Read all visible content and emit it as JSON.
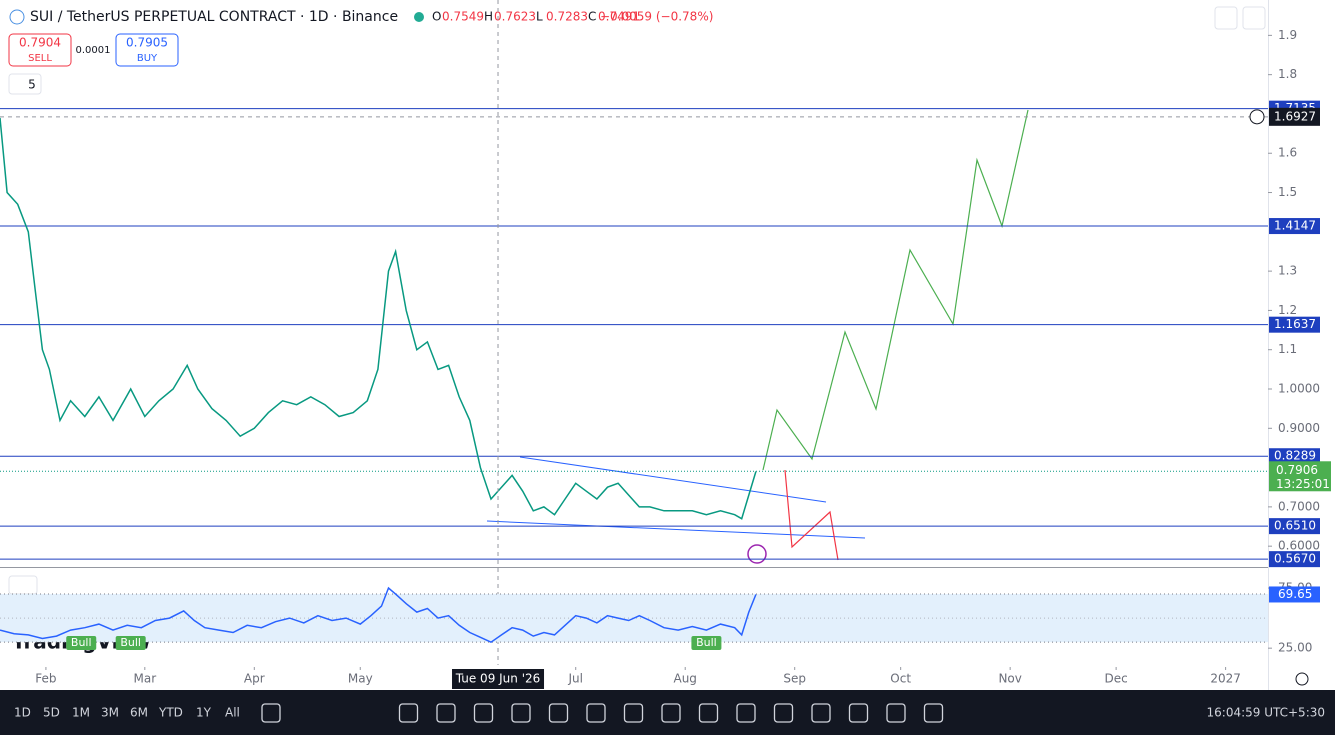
{
  "header": {
    "symbol": "SUI / TetherUS PERPETUAL CONTRACT · 1D · Binance",
    "ohlc": [
      {
        "key": "O",
        "value": "0.7549"
      },
      {
        "key": "H",
        "value": "0.7623"
      },
      {
        "key": "L",
        "value": "0.7283"
      },
      {
        "key": "C",
        "value": "0.7491"
      }
    ],
    "change": "−0.0059 (−0.78%)"
  },
  "trade": {
    "sell_price": "0.7904",
    "sell_label": "SELL",
    "spread": "0.0001",
    "buy_price": "0.7905",
    "buy_label": "BUY"
  },
  "indicators_count": "5",
  "logo": "TradingView",
  "chart_data": [
    {
      "type": "line",
      "series": [
        {
          "name": "SUIUSDT.P",
          "color": "#089981",
          "x": [
            18,
            20,
            23,
            26,
            28,
            30,
            32,
            35,
            38,
            42,
            46,
            50,
            55,
            59,
            63,
            67,
            71,
            74,
            78,
            82,
            86,
            90,
            94,
            98,
            102,
            106,
            110,
            114,
            118,
            122,
            125,
            128,
            130,
            133,
            136,
            139,
            142,
            145,
            148,
            151,
            154,
            157,
            160,
            163,
            166,
            169,
            172,
            175,
            178,
            181,
            184,
            187,
            190,
            193,
            196,
            199,
            202,
            206,
            210,
            214,
            218,
            222,
            226,
            228,
            230,
            232
          ],
          "values": [
            1.69,
            1.5,
            1.47,
            1.4,
            1.25,
            1.1,
            1.05,
            0.92,
            0.97,
            0.93,
            0.98,
            0.92,
            1.0,
            0.93,
            0.97,
            1.0,
            1.06,
            1.0,
            0.95,
            0.92,
            0.88,
            0.9,
            0.94,
            0.97,
            0.96,
            0.98,
            0.96,
            0.93,
            0.94,
            0.97,
            1.05,
            1.3,
            1.35,
            1.2,
            1.1,
            1.12,
            1.05,
            1.06,
            0.98,
            0.92,
            0.8,
            0.72,
            0.75,
            0.78,
            0.74,
            0.69,
            0.7,
            0.68,
            0.72,
            0.76,
            0.74,
            0.72,
            0.75,
            0.76,
            0.73,
            0.7,
            0.7,
            0.69,
            0.69,
            0.69,
            0.68,
            0.69,
            0.68,
            0.67,
            0.73,
            0.79
          ]
        }
      ],
      "xlim": [
        18,
        377
      ],
      "ylim": [
        0.547,
        1.99
      ],
      "xticks": [
        {
          "value": 31,
          "label": "Feb"
        },
        {
          "value": 59,
          "label": "Mar"
        },
        {
          "value": 90,
          "label": "Apr"
        },
        {
          "value": 120,
          "label": "May"
        },
        {
          "value": 181,
          "label": "Jul"
        },
        {
          "value": 212,
          "label": "Aug"
        },
        {
          "value": 243,
          "label": "Sep"
        },
        {
          "value": 273,
          "label": "Oct"
        },
        {
          "value": 304,
          "label": "Nov"
        },
        {
          "value": 334,
          "label": "Dec"
        },
        {
          "value": 365,
          "label": "2027"
        }
      ],
      "yticks": [
        1.9,
        1.8,
        1.6,
        1.5,
        1.3,
        1.2,
        1.1,
        {
          "value": 1.0,
          "label": "1.0000"
        },
        {
          "value": 0.9,
          "label": "0.9000"
        },
        {
          "value": 0.7,
          "label": "0.7000"
        },
        {
          "value": 0.6,
          "label": "0.6000"
        }
      ],
      "levels": [
        {
          "value": 1.7135,
          "label": "1.7135"
        },
        1.4147,
        1.1637,
        0.8289,
        {
          "value": 0.651,
          "label": "0.6510"
        },
        {
          "value": 0.567,
          "label": "0.5670"
        }
      ],
      "level_color": "#1e3fbf",
      "last_price": 0.7906,
      "countdown": "13:25:01",
      "crosshair": {
        "x": 159,
        "date_label": "Tue 09 Jun '26",
        "price": 1.6927
      }
    },
    {
      "type": "line",
      "series": [
        {
          "name": "RSI",
          "color": "#2962ff",
          "x": [
            18,
            22,
            26,
            30,
            34,
            38,
            42,
            46,
            50,
            54,
            58,
            62,
            66,
            70,
            73,
            76,
            80,
            84,
            88,
            92,
            96,
            100,
            104,
            108,
            112,
            116,
            120,
            123,
            126,
            128,
            130,
            133,
            136,
            139,
            142,
            145,
            148,
            151,
            154,
            157,
            160,
            163,
            166,
            169,
            172,
            175,
            178,
            181,
            184,
            187,
            190,
            193,
            196,
            199,
            202,
            206,
            210,
            214,
            218,
            222,
            226,
            228,
            230,
            232
          ],
          "values": [
            40,
            37,
            36,
            33,
            35,
            40,
            42,
            45,
            40,
            44,
            42,
            48,
            50,
            56,
            48,
            42,
            40,
            38,
            44,
            42,
            47,
            50,
            46,
            52,
            48,
            50,
            45,
            52,
            60,
            75,
            70,
            62,
            55,
            58,
            50,
            52,
            44,
            38,
            34,
            30,
            36,
            42,
            40,
            35,
            38,
            36,
            44,
            52,
            50,
            46,
            52,
            50,
            48,
            52,
            48,
            42,
            40,
            43,
            40,
            45,
            42,
            36,
            55,
            69.65
          ]
        }
      ],
      "xlim": [
        18,
        377
      ],
      "ylim": [
        11,
        90
      ],
      "yticks": [
        {
          "value": 75,
          "label": "75.00"
        },
        {
          "value": 25,
          "label": "25.00"
        }
      ],
      "band": [
        30,
        70
      ],
      "bull_labels": [
        {
          "x": 41,
          "text": "Bull"
        },
        {
          "x": 55,
          "text": "Bull"
        },
        {
          "x": 218,
          "text": "Bull"
        }
      ]
    }
  ],
  "footer": {
    "timeframes": [
      "1D",
      "5D",
      "1M",
      "3M",
      "6M",
      "YTD",
      "1Y",
      "All"
    ],
    "clock": "16:04:59 UTC+5:30"
  }
}
